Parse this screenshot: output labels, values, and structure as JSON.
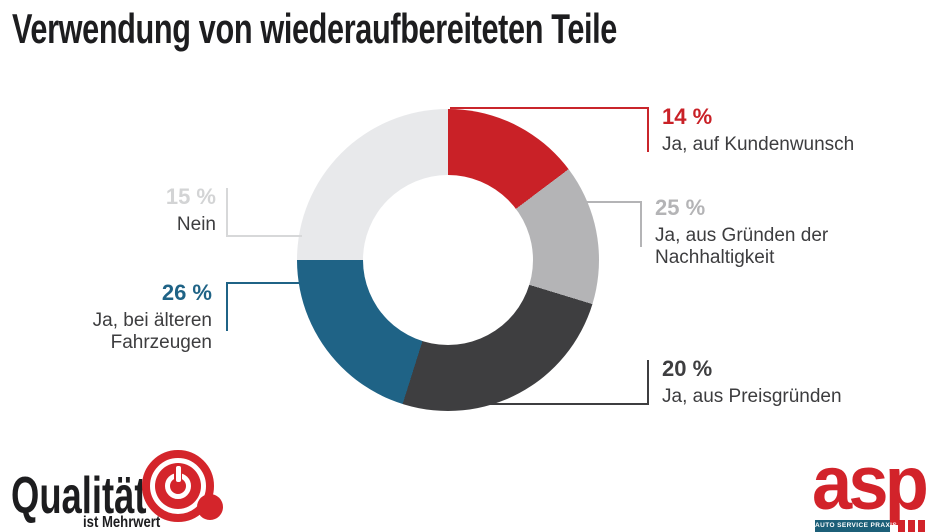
{
  "title": "Verwendung von wiederaufbereiteten Teile",
  "styles": {
    "title_color": "#1d1d1f",
    "label_color": "#3d3d3f",
    "background": "#ffffff"
  },
  "chart_data": {
    "type": "pie",
    "subtype": "donut",
    "title": "Verwendung von wiederaufbereiteten Teile",
    "unit": "%",
    "legend_position": "callouts-around-donut",
    "inner_radius_ratio": 0.56,
    "note": "drawn arc spans in source image differ slightly from labeled values",
    "segments": [
      {
        "label": "Ja, auf Kundenwunsch",
        "value": 14,
        "display": "14 %",
        "color": "#c92127",
        "pct_color": "#c92127",
        "line_color": "#c9252b",
        "start_deg": 0,
        "end_deg": 53
      },
      {
        "label": "Ja, aus Gründen der Nachhaltigkeit",
        "value": 25,
        "display": "25 %",
        "color": "#b4b4b6",
        "pct_color": "#b4b4b6",
        "line_color": "#b4b4b6",
        "start_deg": 53,
        "end_deg": 107
      },
      {
        "label": "Ja, aus Preisgründen",
        "value": 20,
        "display": "20 %",
        "color": "#3e3e40",
        "pct_color": "#3e3e40",
        "line_color": "#3e3e40",
        "start_deg": 107,
        "end_deg": 197.5
      },
      {
        "label": "Ja, bei älteren Fahrzeugen",
        "value": 26,
        "display": "26 %",
        "color": "#1f6386",
        "pct_color": "#1f6386",
        "line_color": "#1f6386",
        "start_deg": 197.5,
        "end_deg": 270
      },
      {
        "label": "Nein",
        "value": 15,
        "display": "15 %",
        "color": "#e8e9eb",
        "pct_color": "#d3d4d5",
        "line_color": "#d7d8d9",
        "start_deg": 270,
        "end_deg": 360
      }
    ]
  },
  "logos": {
    "qualitaet": {
      "word": "Qualität",
      "subline": "ist Mehrwert",
      "text_color": "#1d1d1f",
      "logo_color": "#d4252b"
    },
    "asp": {
      "word": "asp",
      "band_label": "AUTO SERVICE PRAXIS",
      "word_color": "#d2232a",
      "band_color": "#1c5f78",
      "bar_color": "#d2232a"
    }
  }
}
